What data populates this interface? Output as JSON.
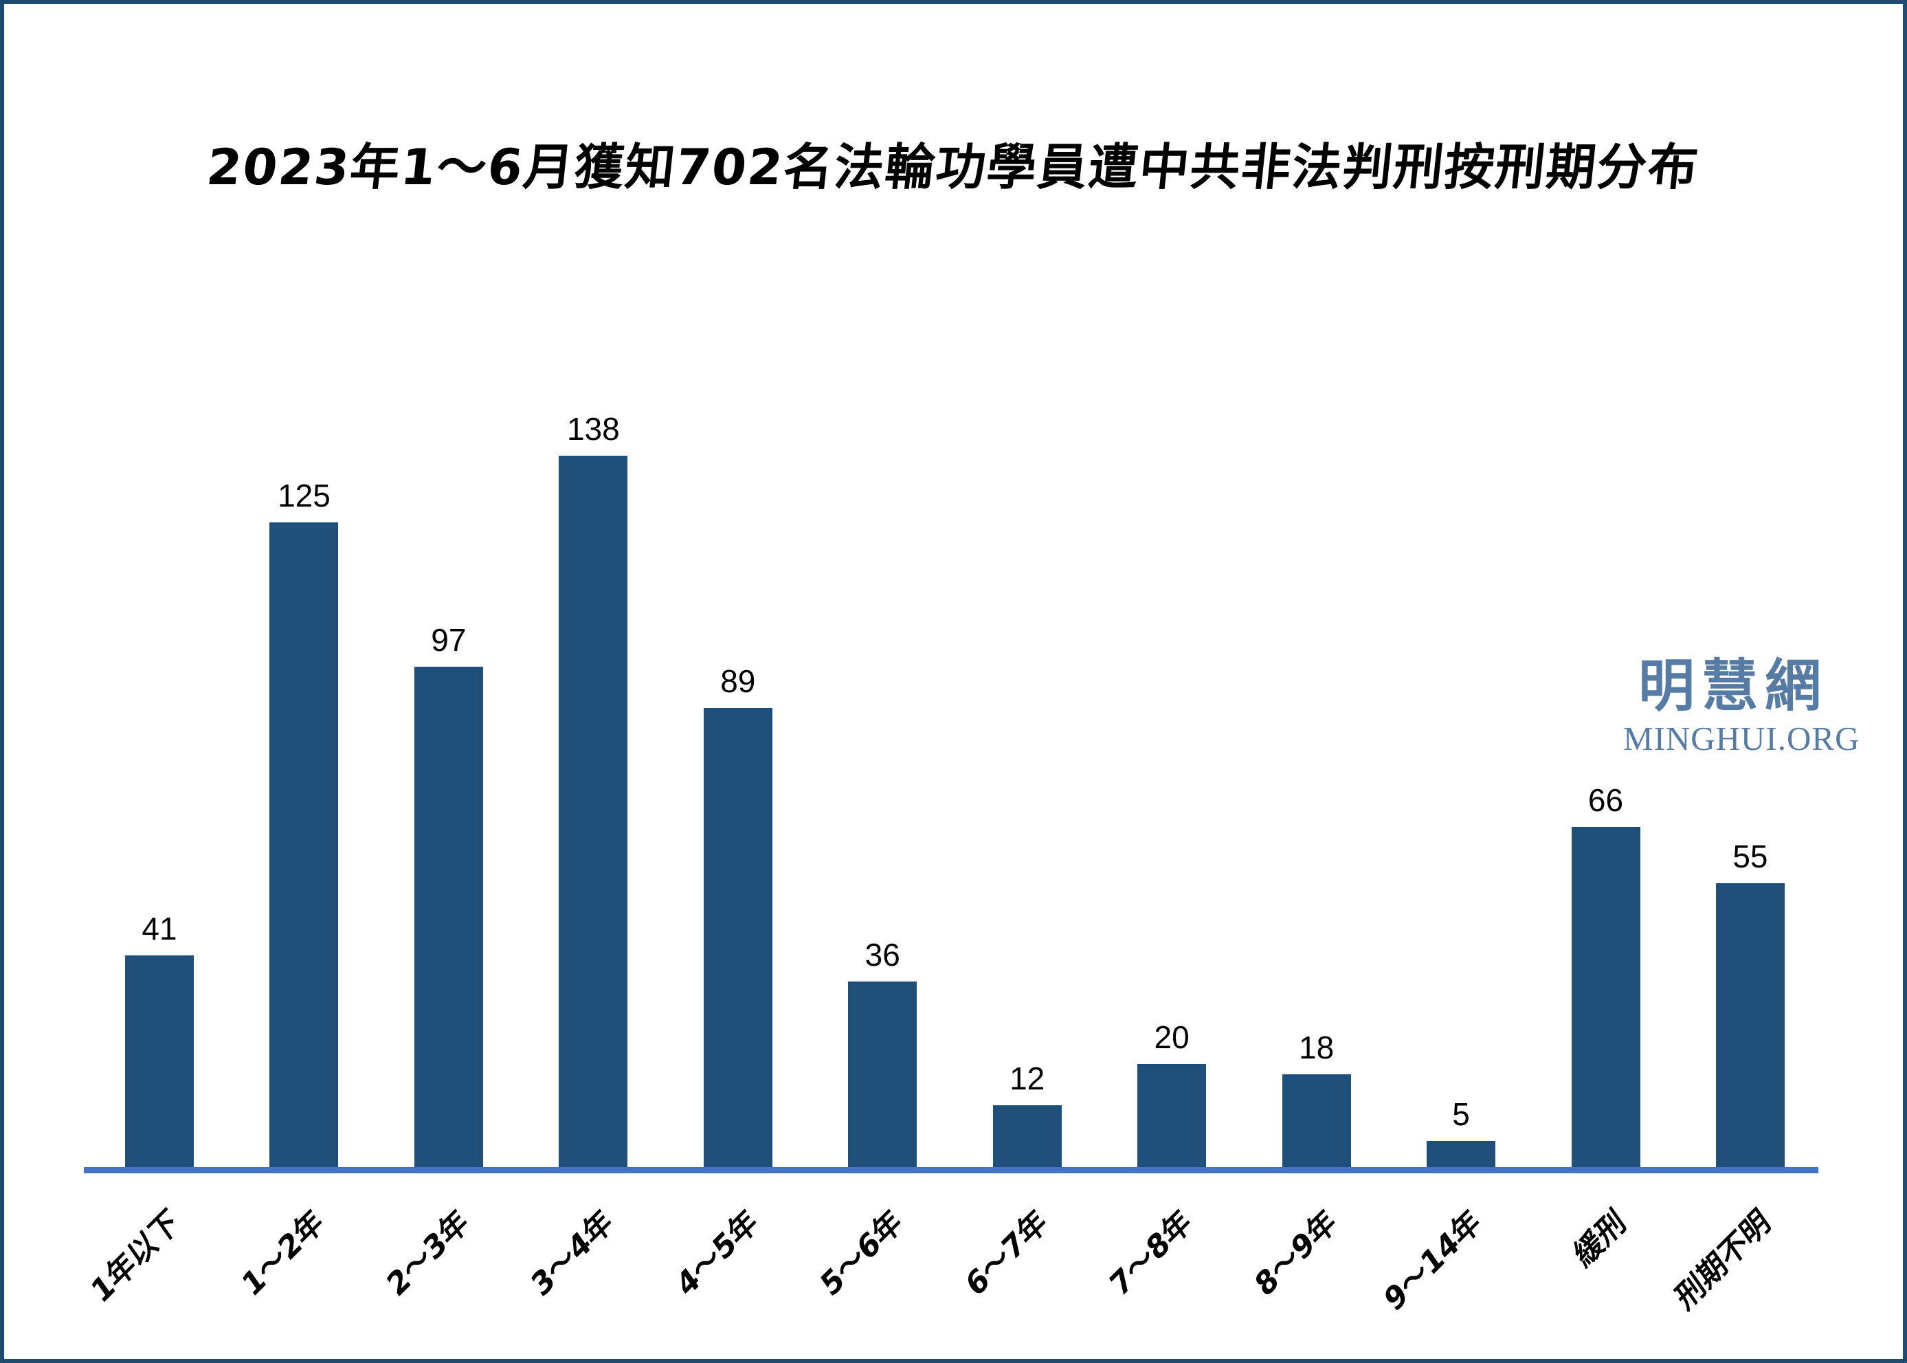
{
  "logo": {
    "cjk": "明慧網",
    "latin": "MINGHUI.ORG",
    "color": "#567CA5"
  },
  "frame": {
    "border_color": "#1F4B73",
    "background": "#FFFFFF"
  },
  "chart_data": {
    "type": "bar",
    "title": "2023年1～6月獲知702名法輪功學員遭中共非法判刑按刑期分布",
    "categories": [
      "1年以下",
      "1～2年",
      "2～3年",
      "3～4年",
      "4～5年",
      "5～6年",
      "6～7年",
      "7～8年",
      "8～9年",
      "9～14年",
      "緩刑",
      "刑期不明"
    ],
    "values": [
      41,
      125,
      97,
      138,
      89,
      36,
      12,
      20,
      18,
      5,
      66,
      55
    ],
    "total": 702,
    "value_labels_shown": true,
    "x_tick_rotation_deg": -45,
    "ylim": [
      0,
      138
    ],
    "grid": false,
    "legend": "none",
    "bar_color": "#1F4E79",
    "axis_color": "#4472C4",
    "label_color": "#000000"
  }
}
